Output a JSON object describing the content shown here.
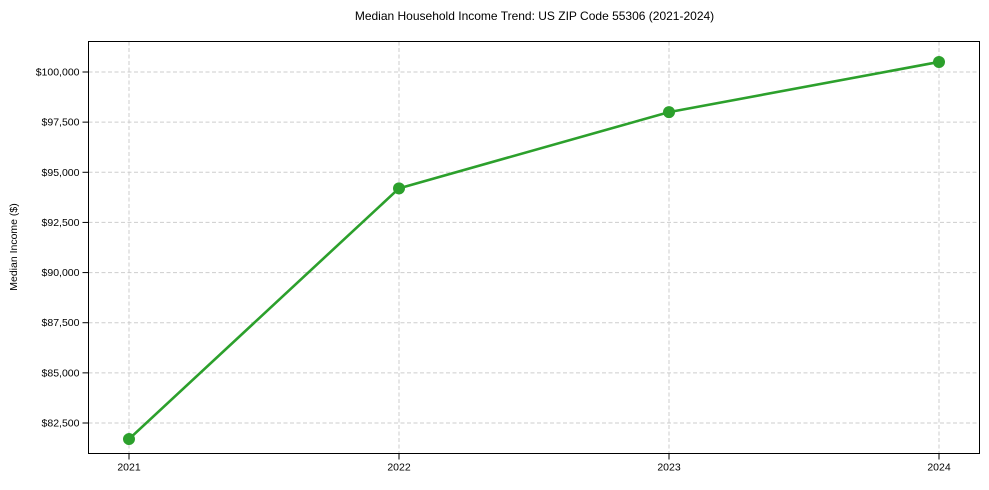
{
  "figure": {
    "background": "#ffffff"
  },
  "chart_data": {
    "type": "line",
    "title": "Median Household Income Trend: US ZIP Code 55306 (2021-2024)",
    "xlabel": "",
    "ylabel": "Median Income ($)",
    "x": [
      2021,
      2022,
      2023,
      2024
    ],
    "xtick_labels": [
      "2021",
      "2022",
      "2023",
      "2024"
    ],
    "series": [
      {
        "name": "median_household_income",
        "values": [
          81700,
          94200,
          98000,
          100500
        ],
        "color": "#2ca02c",
        "line_width": 2.6,
        "marker": "circle",
        "marker_radius": 6
      }
    ],
    "yticks": [
      82500,
      85000,
      87500,
      90000,
      92500,
      95000,
      97500,
      100000
    ],
    "ytick_labels": [
      "$82,500",
      "$85,000",
      "$87,500",
      "$90,000",
      "$92,500",
      "$95,000",
      "$97,500",
      "$100,000"
    ],
    "xlim": [
      2020.85,
      2024.15
    ],
    "ylim": [
      80980,
      101520
    ],
    "grid": true,
    "grid_color": "#cdcdcd",
    "grid_dash": "4 2.5",
    "axis_color": "#000000",
    "tick_length": 6,
    "legend_position": "none"
  }
}
